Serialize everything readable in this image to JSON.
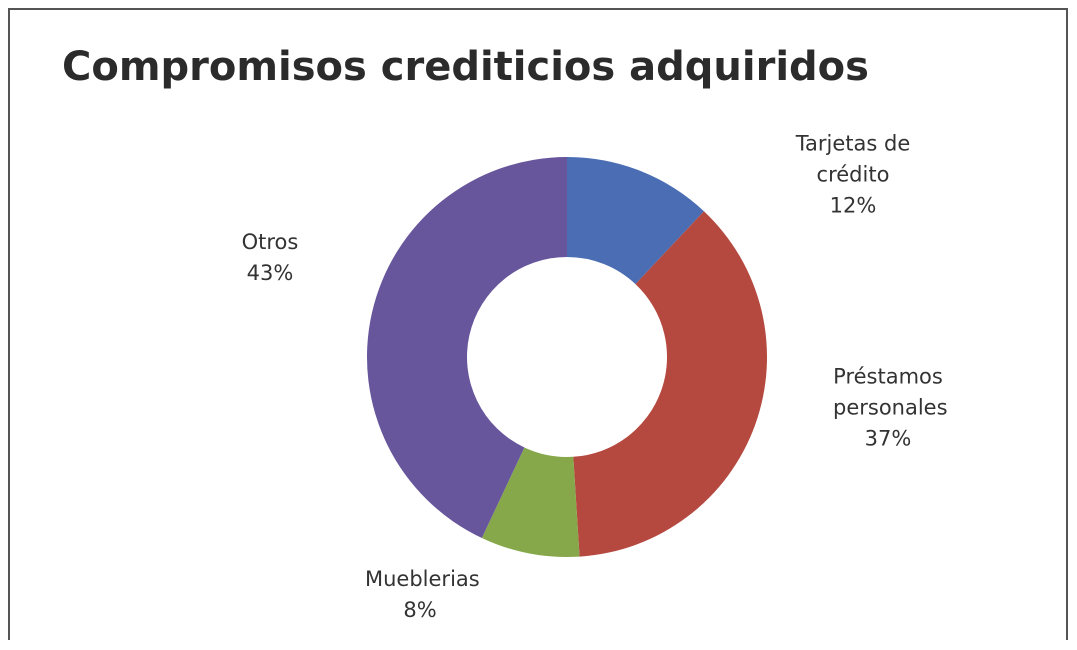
{
  "chart_data": {
    "type": "donut",
    "title": "Compromisos crediticios adquiridos",
    "categories": [
      "Tarjetas de crédito",
      "Préstamos personales",
      "Mueblerias",
      "Otros"
    ],
    "values": [
      12,
      37,
      8,
      43
    ],
    "value_labels": [
      "12%",
      "37%",
      "8%",
      "43%"
    ],
    "colors": [
      "#4a6db3",
      "#b5493f",
      "#86a84a",
      "#67569c"
    ]
  }
}
